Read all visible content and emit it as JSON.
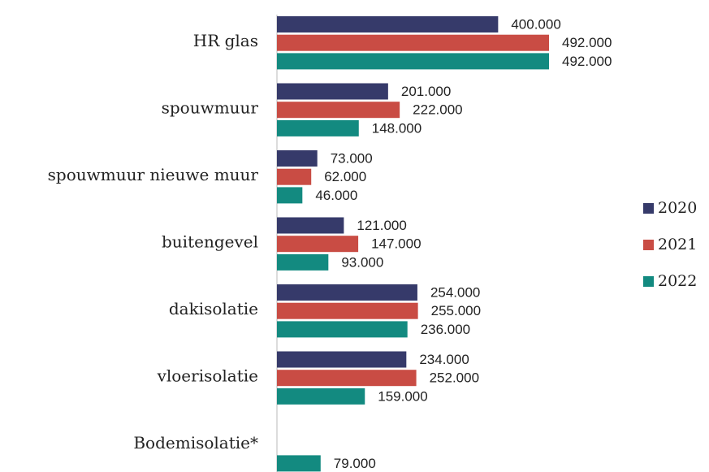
{
  "chart_data": {
    "type": "bar",
    "orientation": "horizontal",
    "categories": [
      "HR glas",
      "spouwmuur",
      "spouwmuur nieuwe muur",
      "buitengevel",
      "dakisolatie",
      "vloerisolatie",
      "Bodemisolatie*"
    ],
    "series": [
      {
        "name": "2020",
        "color": "#363a6a",
        "values": [
          400000,
          201000,
          73000,
          121000,
          254000,
          234000,
          null
        ],
        "value_labels": [
          "400.000",
          "201.000",
          "73.000",
          "121.000",
          "254.000",
          "234.000",
          null
        ]
      },
      {
        "name": "2021",
        "color": "#c94c44",
        "values": [
          492000,
          222000,
          62000,
          147000,
          255000,
          252000,
          null
        ],
        "value_labels": [
          "492.000",
          "222.000",
          "62.000",
          "147.000",
          "255.000",
          "252.000",
          null
        ]
      },
      {
        "name": "2022",
        "color": "#138a80",
        "values": [
          492000,
          148000,
          46000,
          93000,
          236000,
          159000,
          79000
        ],
        "value_labels": [
          "492.000",
          "148.000",
          "46.000",
          "93.000",
          "236.000",
          "159.000",
          "79.000"
        ]
      }
    ],
    "legend": "right"
  }
}
